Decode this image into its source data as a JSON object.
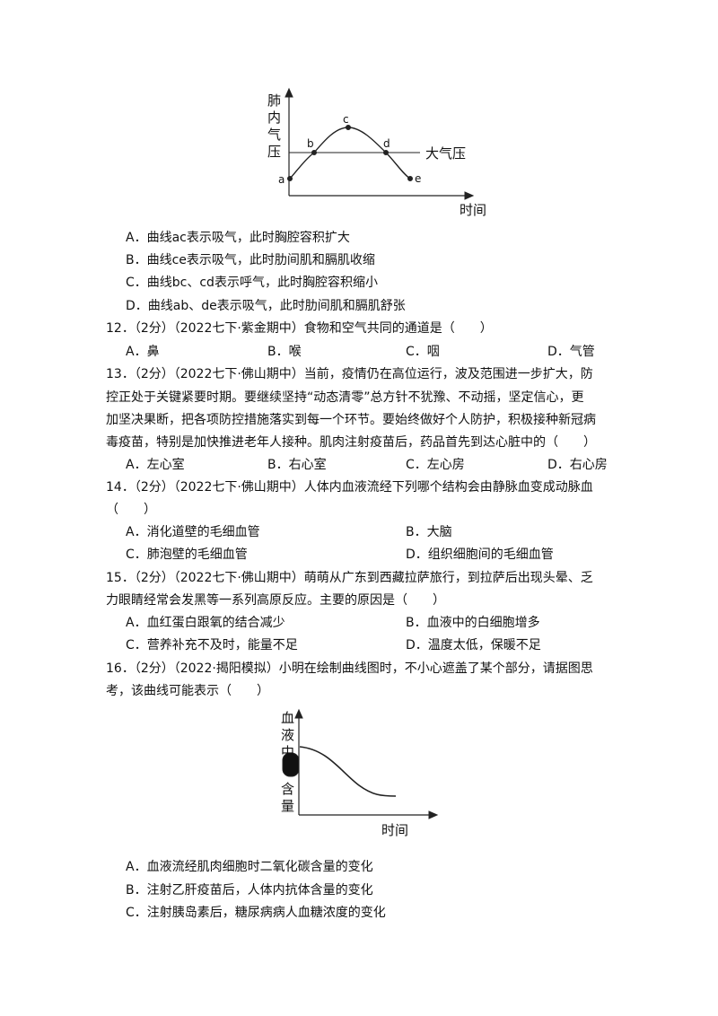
{
  "figure1": {
    "y_label": "肺内气压",
    "x_label": "时间",
    "line_label": "大气压",
    "points": [
      "a",
      "b",
      "c",
      "d",
      "e"
    ]
  },
  "q11_options": [
    "A．曲线ac表示吸气，此时胸腔容积扩大",
    "B．曲线ce表示吸气，此时肋间肌和膈肌收缩",
    "C．曲线bc、cd表示呼气，此时胸腔容积缩小",
    "D．曲线ab、de表示吸气，此时肋间肌和膈肌舒张"
  ],
  "questions": [
    {
      "stem_lines": [
        "12．（2分）（2022七下·紫金期中）食物和空气共同的通道是（　　）"
      ],
      "options": [
        "A．鼻",
        "B．喉",
        "C．咽",
        "D．气管"
      ]
    },
    {
      "stem_lines": [
        "13．（2分）（2022七下·佛山期中）当前，疫情仍在高位运行，波及范围进一步扩大，防",
        "控正处于关键紧要时期。要继续坚持“动态清零”总方针不犹豫、不动摇，坚定信心，更",
        "加坚决果断，把各项防控措施落实到每一个环节。要始终做好个人防护，积极接种新冠病",
        "毒疫苗，特别是加快推进老年人接种。肌肉注射疫苗后，药品首先到达心脏中的（　　）"
      ],
      "options": [
        "A．左心室",
        "B．右心室",
        "C．左心房",
        "D．右心房"
      ]
    },
    {
      "stem_lines": [
        "14．（2分）（2022七下·佛山期中）人体内血液流经下列哪个结构会由静脉血变成动脉血",
        "（　　）"
      ],
      "options": [
        "A．消化道壁的毛细血管",
        "B．大脑",
        "C．肺泡壁的毛细血管",
        "D．组织细胞间的毛细血管"
      ]
    },
    {
      "stem_lines": [
        "15．（2分）（2022七下·佛山期中）萌萌从广东到西藏拉萨旅行，到拉萨后出现头晕、乏",
        "力眼睛经常会发黑等一系列高原反应。主要的原因是（　　）"
      ],
      "options": [
        "A．血红蛋白跟氧的结合减少",
        "B．血液中的白细胞增多",
        "C．营养补充不及时，能量不足",
        "D．温度太低，保暖不足"
      ]
    },
    {
      "stem_lines": [
        "16．（2分）（2022·揭阳模拟）小明在绘制曲线图时，不小心遮盖了某个部分，请据图思",
        "考，该曲线可能表示（　　）"
      ],
      "options": [
        "A．血液流经肌肉细胞时二氧化碳含量的变化",
        "B．注射乙肝疫苗后，人体内抗体含量的变化",
        "C．注射胰岛素后，糖尿病病人血糖浓度的变化"
      ]
    }
  ],
  "figure2": {
    "y_label_top": "血液中",
    "y_label_bottom": "含量",
    "x_label": "时间"
  }
}
